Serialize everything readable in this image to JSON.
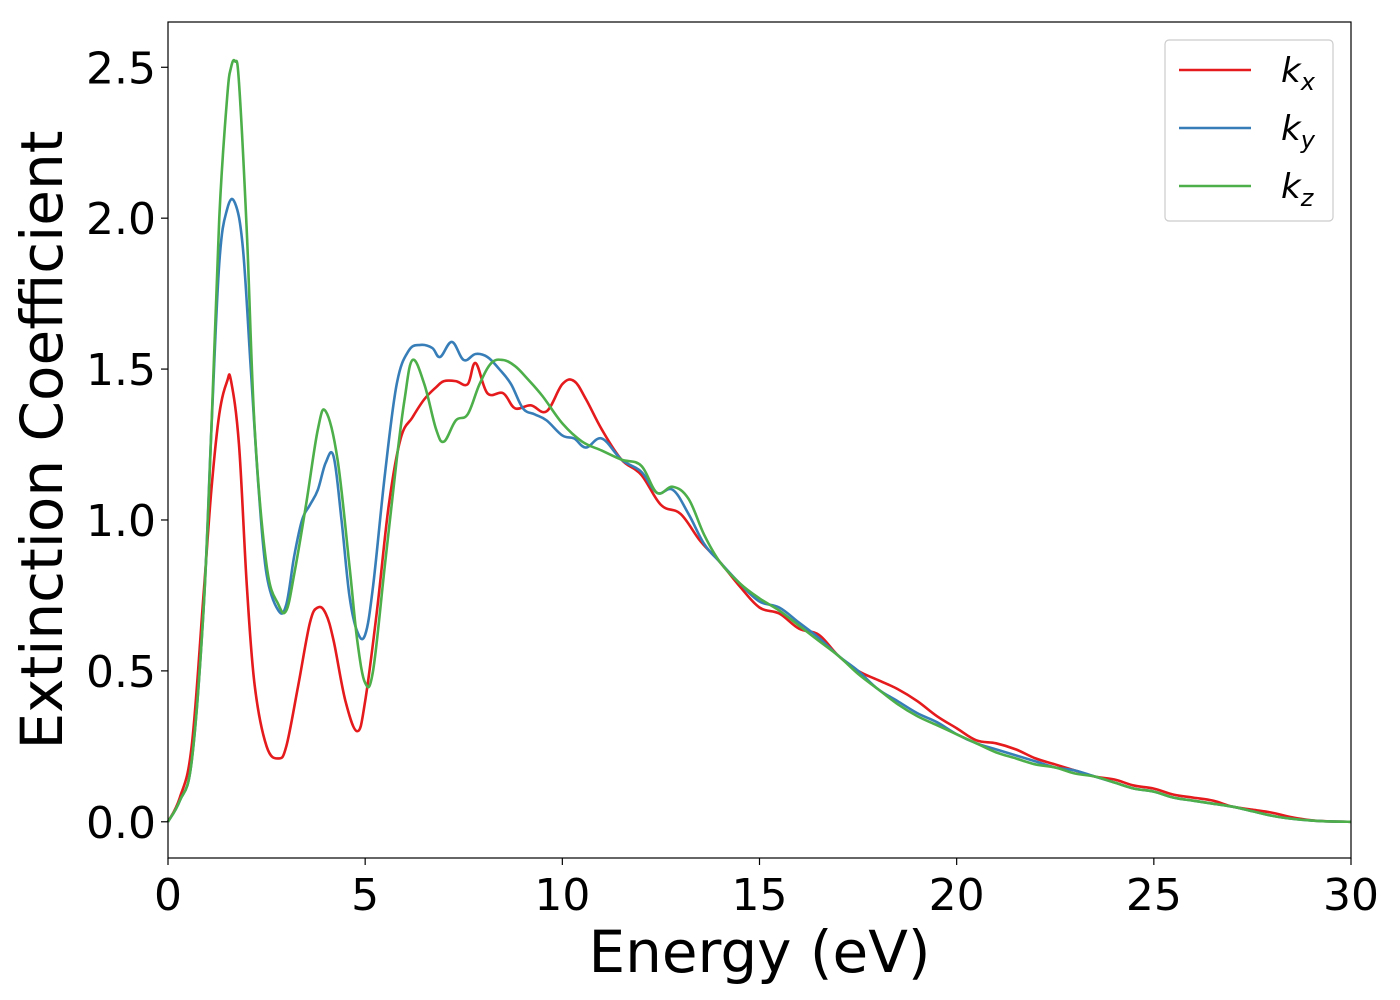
{
  "chart_data": {
    "type": "line",
    "xlabel": "Energy (eV)",
    "ylabel": "Extinction Coefficient",
    "xlim": [
      0,
      30
    ],
    "ylim": [
      -0.12,
      2.65
    ],
    "xticks": [
      0,
      5,
      10,
      15,
      20,
      25,
      30
    ],
    "xtick_labels": [
      "0",
      "5",
      "10",
      "15",
      "20",
      "25",
      "30"
    ],
    "yticks": [
      0.0,
      0.5,
      1.0,
      1.5,
      2.0,
      2.5
    ],
    "ytick_labels": [
      "0.0",
      "0.5",
      "1.0",
      "1.5",
      "2.0",
      "2.5"
    ],
    "grid": false,
    "legend_position": "top-right",
    "series": [
      {
        "name": "k",
        "subscript": "x",
        "color": "#e41a1c",
        "x": [
          0,
          0.3,
          0.6,
          0.9,
          1.1,
          1.3,
          1.5,
          1.6,
          1.8,
          2.0,
          2.2,
          2.5,
          2.8,
          3.0,
          3.3,
          3.6,
          3.8,
          4.0,
          4.2,
          4.5,
          4.8,
          5.0,
          5.3,
          5.6,
          5.9,
          6.2,
          6.5,
          6.8,
          7.0,
          7.3,
          7.6,
          7.8,
          8.1,
          8.5,
          8.8,
          9.2,
          9.6,
          10.0,
          10.3,
          10.6,
          11.0,
          11.5,
          12.0,
          12.5,
          13.0,
          13.5,
          14.0,
          14.5,
          15.0,
          15.5,
          16.0,
          16.5,
          17.0,
          17.5,
          18.0,
          18.5,
          19.0,
          19.5,
          20.0,
          20.5,
          21.0,
          21.5,
          22.0,
          22.5,
          23.0,
          23.5,
          24.0,
          24.5,
          25.0,
          25.5,
          26.0,
          26.5,
          27.0,
          27.5,
          28.0,
          28.5,
          29.0,
          29.5,
          30.0
        ],
        "y": [
          0.0,
          0.08,
          0.25,
          0.75,
          1.1,
          1.35,
          1.46,
          1.46,
          1.25,
          0.78,
          0.45,
          0.25,
          0.21,
          0.25,
          0.45,
          0.66,
          0.71,
          0.69,
          0.6,
          0.4,
          0.3,
          0.4,
          0.7,
          1.05,
          1.27,
          1.34,
          1.4,
          1.44,
          1.46,
          1.46,
          1.45,
          1.52,
          1.42,
          1.42,
          1.37,
          1.38,
          1.36,
          1.45,
          1.46,
          1.4,
          1.3,
          1.2,
          1.15,
          1.05,
          1.02,
          0.93,
          0.86,
          0.78,
          0.71,
          0.69,
          0.64,
          0.62,
          0.55,
          0.5,
          0.47,
          0.44,
          0.4,
          0.35,
          0.31,
          0.27,
          0.26,
          0.24,
          0.21,
          0.19,
          0.17,
          0.15,
          0.14,
          0.12,
          0.11,
          0.09,
          0.08,
          0.07,
          0.05,
          0.04,
          0.03,
          0.015,
          0.005,
          0.001,
          0.0
        ]
      },
      {
        "name": "k",
        "subscript": "y",
        "color": "#377eb8",
        "x": [
          0,
          0.3,
          0.6,
          0.9,
          1.1,
          1.3,
          1.5,
          1.7,
          1.9,
          2.1,
          2.3,
          2.5,
          2.8,
          3.0,
          3.2,
          3.4,
          3.6,
          3.8,
          4.0,
          4.2,
          4.4,
          4.6,
          4.8,
          5.0,
          5.2,
          5.5,
          5.8,
          6.1,
          6.4,
          6.7,
          6.9,
          7.2,
          7.5,
          7.8,
          8.1,
          8.4,
          8.7,
          9.0,
          9.3,
          9.6,
          10.0,
          10.3,
          10.6,
          11.0,
          11.5,
          12.0,
          12.4,
          12.8,
          13.2,
          13.6,
          14.0,
          14.5,
          15.0,
          15.5,
          16.0,
          16.5,
          17.0,
          17.5,
          18.0,
          18.5,
          19.0,
          19.5,
          20.0,
          20.5,
          21.0,
          21.5,
          22.0,
          22.5,
          23.0,
          23.5,
          24.0,
          24.5,
          25.0,
          25.5,
          26.0,
          26.5,
          27.0,
          27.5,
          28.0,
          28.5,
          29.0,
          29.5,
          30.0
        ],
        "y": [
          0.0,
          0.07,
          0.2,
          0.7,
          1.3,
          1.85,
          2.03,
          2.05,
          1.9,
          1.5,
          1.1,
          0.82,
          0.7,
          0.72,
          0.88,
          1.0,
          1.05,
          1.1,
          1.19,
          1.21,
          1.0,
          0.75,
          0.63,
          0.62,
          0.78,
          1.15,
          1.45,
          1.56,
          1.58,
          1.57,
          1.54,
          1.59,
          1.53,
          1.55,
          1.54,
          1.5,
          1.45,
          1.37,
          1.35,
          1.33,
          1.28,
          1.27,
          1.24,
          1.27,
          1.2,
          1.16,
          1.09,
          1.1,
          1.02,
          0.92,
          0.86,
          0.79,
          0.73,
          0.71,
          0.66,
          0.61,
          0.55,
          0.5,
          0.44,
          0.4,
          0.36,
          0.33,
          0.29,
          0.26,
          0.24,
          0.22,
          0.2,
          0.18,
          0.17,
          0.15,
          0.13,
          0.11,
          0.1,
          0.08,
          0.07,
          0.06,
          0.05,
          0.035,
          0.02,
          0.01,
          0.004,
          0.001,
          0.0
        ]
      },
      {
        "name": "k",
        "subscript": "z",
        "color": "#4daf4a",
        "x": [
          0,
          0.3,
          0.6,
          0.9,
          1.1,
          1.3,
          1.5,
          1.6,
          1.7,
          1.8,
          2.0,
          2.2,
          2.5,
          2.8,
          3.0,
          3.2,
          3.5,
          3.8,
          4.0,
          4.3,
          4.6,
          4.8,
          5.0,
          5.2,
          5.5,
          5.8,
          6.0,
          6.2,
          6.5,
          6.8,
          7.0,
          7.3,
          7.6,
          7.9,
          8.2,
          8.5,
          8.8,
          9.1,
          9.5,
          10.0,
          10.5,
          11.0,
          11.5,
          12.0,
          12.4,
          12.8,
          13.2,
          13.6,
          14.0,
          14.5,
          15.0,
          15.5,
          16.0,
          16.5,
          17.0,
          17.5,
          18.0,
          18.5,
          19.0,
          19.5,
          20.0,
          20.5,
          21.0,
          21.5,
          22.0,
          22.5,
          23.0,
          23.5,
          24.0,
          24.5,
          25.0,
          25.5,
          26.0,
          26.5,
          27.0,
          27.5,
          28.0,
          28.5,
          29.0,
          29.5,
          30.0
        ],
        "y": [
          0.0,
          0.07,
          0.2,
          0.7,
          1.3,
          2.0,
          2.4,
          2.5,
          2.52,
          2.45,
          1.95,
          1.3,
          0.85,
          0.72,
          0.7,
          0.82,
          1.05,
          1.3,
          1.36,
          1.2,
          0.85,
          0.6,
          0.46,
          0.5,
          0.85,
          1.2,
          1.4,
          1.53,
          1.45,
          1.3,
          1.26,
          1.33,
          1.35,
          1.45,
          1.52,
          1.53,
          1.51,
          1.47,
          1.41,
          1.32,
          1.26,
          1.23,
          1.2,
          1.18,
          1.09,
          1.11,
          1.07,
          0.95,
          0.86,
          0.79,
          0.74,
          0.7,
          0.65,
          0.6,
          0.55,
          0.49,
          0.44,
          0.39,
          0.35,
          0.32,
          0.29,
          0.26,
          0.23,
          0.21,
          0.19,
          0.18,
          0.16,
          0.15,
          0.13,
          0.11,
          0.1,
          0.08,
          0.07,
          0.06,
          0.05,
          0.035,
          0.02,
          0.01,
          0.004,
          0.001,
          0.0
        ]
      }
    ]
  }
}
